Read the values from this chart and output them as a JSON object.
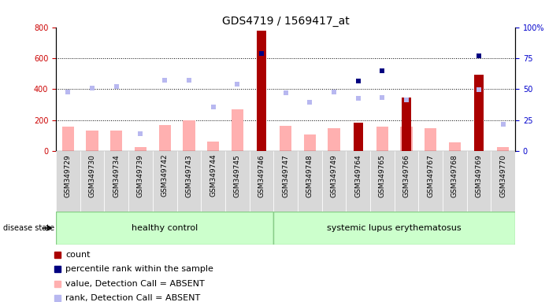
{
  "title": "GDS4719 / 1569417_at",
  "samples": [
    "GSM349729",
    "GSM349730",
    "GSM349734",
    "GSM349739",
    "GSM349742",
    "GSM349743",
    "GSM349744",
    "GSM349745",
    "GSM349746",
    "GSM349747",
    "GSM349748",
    "GSM349749",
    "GSM349764",
    "GSM349765",
    "GSM349766",
    "GSM349767",
    "GSM349768",
    "GSM349769",
    "GSM349770"
  ],
  "n_healthy": 9,
  "n_lupus": 10,
  "count_values": [
    0,
    0,
    0,
    0,
    0,
    0,
    0,
    0,
    775,
    0,
    0,
    0,
    185,
    0,
    345,
    0,
    0,
    495,
    0
  ],
  "value_absent": [
    160,
    130,
    130,
    25,
    170,
    200,
    60,
    270,
    0,
    165,
    105,
    145,
    0,
    155,
    155,
    145,
    55,
    0,
    25
  ],
  "rank_absent": [
    380,
    405,
    415,
    110,
    455,
    455,
    285,
    430,
    0,
    375,
    315,
    380,
    340,
    345,
    330,
    0,
    0,
    395,
    175
  ],
  "percentile_rank_left": [
    null,
    null,
    null,
    null,
    null,
    null,
    null,
    null,
    630,
    null,
    null,
    null,
    450,
    520,
    null,
    null,
    null,
    615,
    null
  ],
  "ylim_left": [
    0,
    800
  ],
  "yticks_left": [
    0,
    200,
    400,
    600,
    800
  ],
  "yticks_right_labels": [
    "0",
    "25",
    "50",
    "75",
    "100%"
  ],
  "yticks_right_vals": [
    0,
    25,
    50,
    75,
    100
  ],
  "bg_color": "#ffffff",
  "bar_pink": "#ffb0b0",
  "bar_darkred": "#aa0000",
  "bar_lightblue": "#b8b8f0",
  "dot_darkblue": "#000080",
  "group_green": "#ccffcc",
  "group_border": "#88cc88",
  "label_color_left": "#cc0000",
  "label_color_right": "#0000cc",
  "label_fontsize": 8,
  "title_fontsize": 10,
  "tick_label_fontsize": 7,
  "sample_fontsize": 6.5,
  "group_fontsize": 8,
  "legend_fontsize": 8
}
